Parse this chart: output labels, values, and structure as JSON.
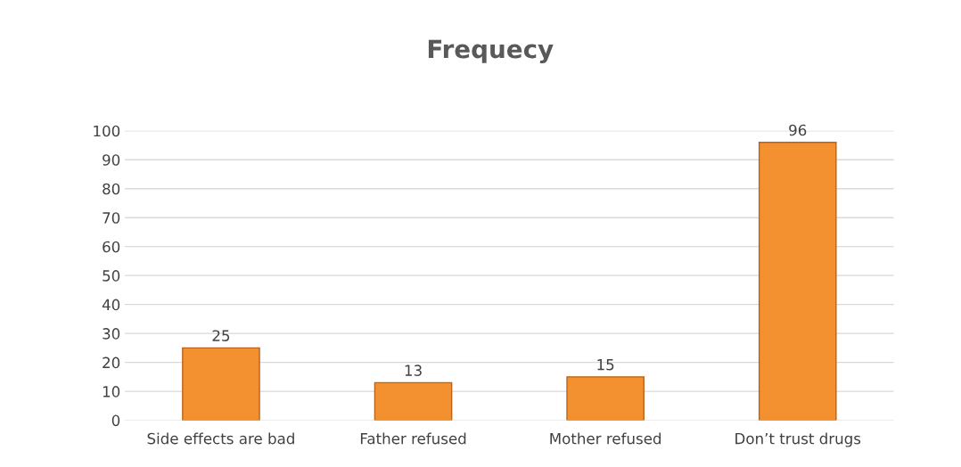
{
  "chart_data": {
    "type": "bar",
    "title": "Frequecy",
    "categories": [
      "Side effects are bad",
      "Father refused",
      "Mother refused",
      "Don’t trust drugs"
    ],
    "values": [
      25,
      13,
      15,
      96
    ],
    "color": "#f39130",
    "ylim": [
      0,
      100
    ],
    "yticks": [
      0,
      10,
      20,
      30,
      40,
      50,
      60,
      70,
      80,
      90,
      100
    ],
    "grid": "y",
    "data_labels": true
  }
}
